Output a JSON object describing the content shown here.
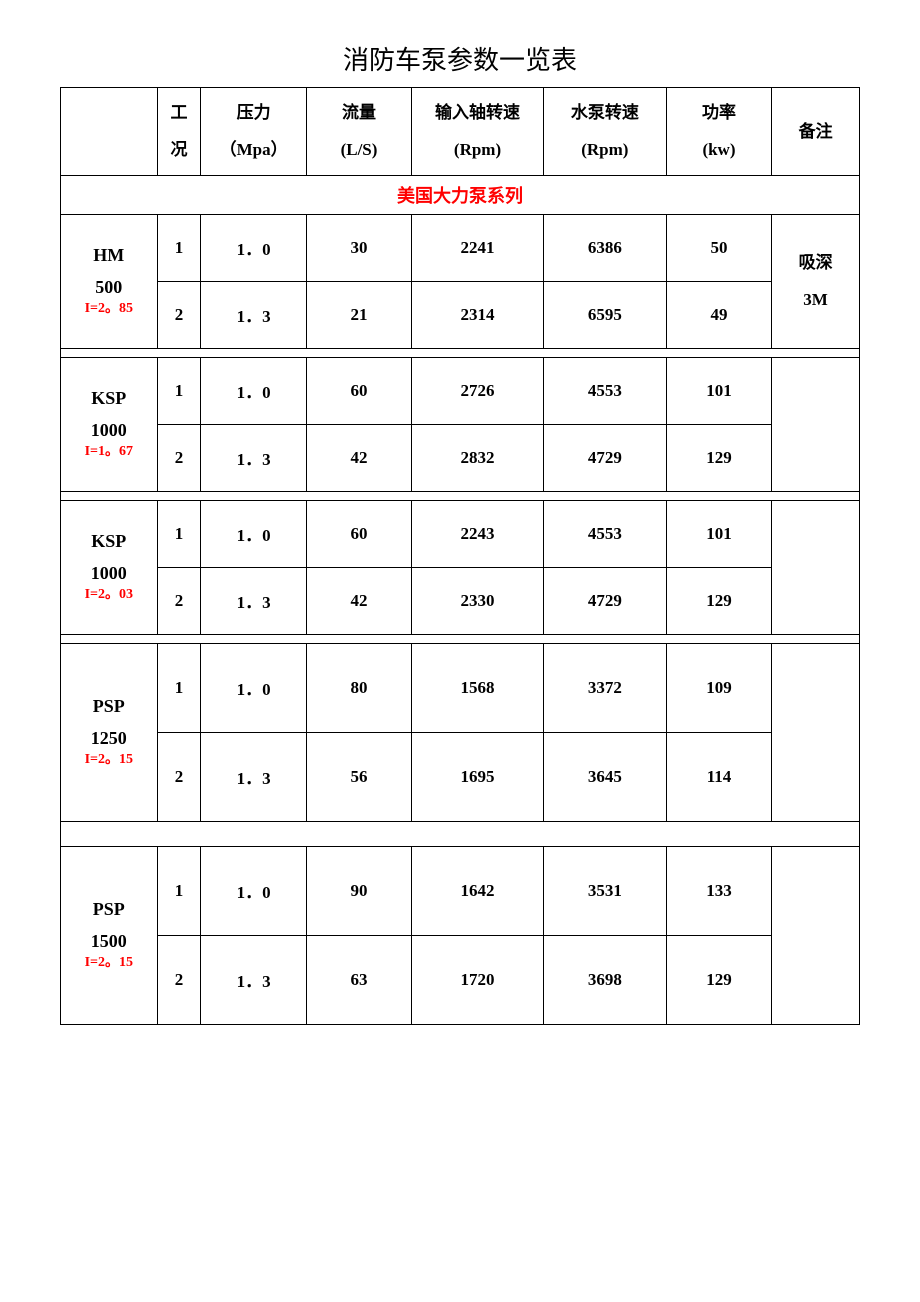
{
  "title": "消防车泵参数一览表",
  "table": {
    "columns": [
      {
        "line1": "",
        "line2": ""
      },
      {
        "line1": "工",
        "line2": "况"
      },
      {
        "line1": "压力",
        "line2": "（Mpa）"
      },
      {
        "line1": "流量",
        "line2": "(L/S)"
      },
      {
        "line1": "输入轴转速",
        "line2": "(Rpm)"
      },
      {
        "line1": "水泵转速",
        "line2": "(Rpm)"
      },
      {
        "line1": "功率",
        "line2": "(kw)"
      },
      {
        "line1": "备注",
        "line2": ""
      }
    ],
    "section_title": "美国大力泵系列",
    "groups": [
      {
        "model_main": "HM",
        "model_sub": "500",
        "model_ratio": "I=2。85",
        "remark_line1": "吸深",
        "remark_line2": "3M",
        "rows": [
          {
            "cond": "1",
            "pressure": "1．0",
            "flow": "30",
            "in_speed": "2241",
            "pump_speed": "6386",
            "power": "50"
          },
          {
            "cond": "2",
            "pressure": "1．3",
            "flow": "21",
            "in_speed": "2314",
            "pump_speed": "6595",
            "power": "49"
          }
        ]
      },
      {
        "model_main": "KSP",
        "model_sub": "1000",
        "model_ratio": "I=1。67",
        "remark_line1": "",
        "remark_line2": "",
        "rows": [
          {
            "cond": "1",
            "pressure": "1．0",
            "flow": "60",
            "in_speed": "2726",
            "pump_speed": "4553",
            "power": "101"
          },
          {
            "cond": "2",
            "pressure": "1．3",
            "flow": "42",
            "in_speed": "2832",
            "pump_speed": "4729",
            "power": "129"
          }
        ]
      },
      {
        "model_main": "KSP",
        "model_sub": "1000",
        "model_ratio": "I=2。03",
        "remark_line1": "",
        "remark_line2": "",
        "rows": [
          {
            "cond": "1",
            "pressure": "1．0",
            "flow": "60",
            "in_speed": "2243",
            "pump_speed": "4553",
            "power": "101"
          },
          {
            "cond": "2",
            "pressure": "1．3",
            "flow": "42",
            "in_speed": "2330",
            "pump_speed": "4729",
            "power": "129"
          }
        ]
      },
      {
        "model_main": "PSP",
        "model_sub": "1250",
        "model_ratio": "I=2。15",
        "remark_line1": "",
        "remark_line2": "",
        "rows": [
          {
            "cond": "1",
            "pressure": "1．0",
            "flow": "80",
            "in_speed": "1568",
            "pump_speed": "3372",
            "power": "109"
          },
          {
            "cond": "2",
            "pressure": "1．3",
            "flow": "56",
            "in_speed": "1695",
            "pump_speed": "3645",
            "power": "114"
          }
        ]
      },
      {
        "model_main": "PSP",
        "model_sub": "1500",
        "model_ratio": "I=2。15",
        "remark_line1": "",
        "remark_line2": "",
        "rows": [
          {
            "cond": "1",
            "pressure": "1．0",
            "flow": "90",
            "in_speed": "1642",
            "pump_speed": "3531",
            "power": "133"
          },
          {
            "cond": "2",
            "pressure": "1．3",
            "flow": "63",
            "in_speed": "1720",
            "pump_speed": "3698",
            "power": "129"
          }
        ]
      }
    ]
  },
  "styling": {
    "colors": {
      "text": "#000000",
      "accent": "#ff0000",
      "border": "#000000",
      "background": "#ffffff"
    },
    "font_size_title": 26,
    "font_size_cell": 17,
    "font_size_ratio": 14
  }
}
